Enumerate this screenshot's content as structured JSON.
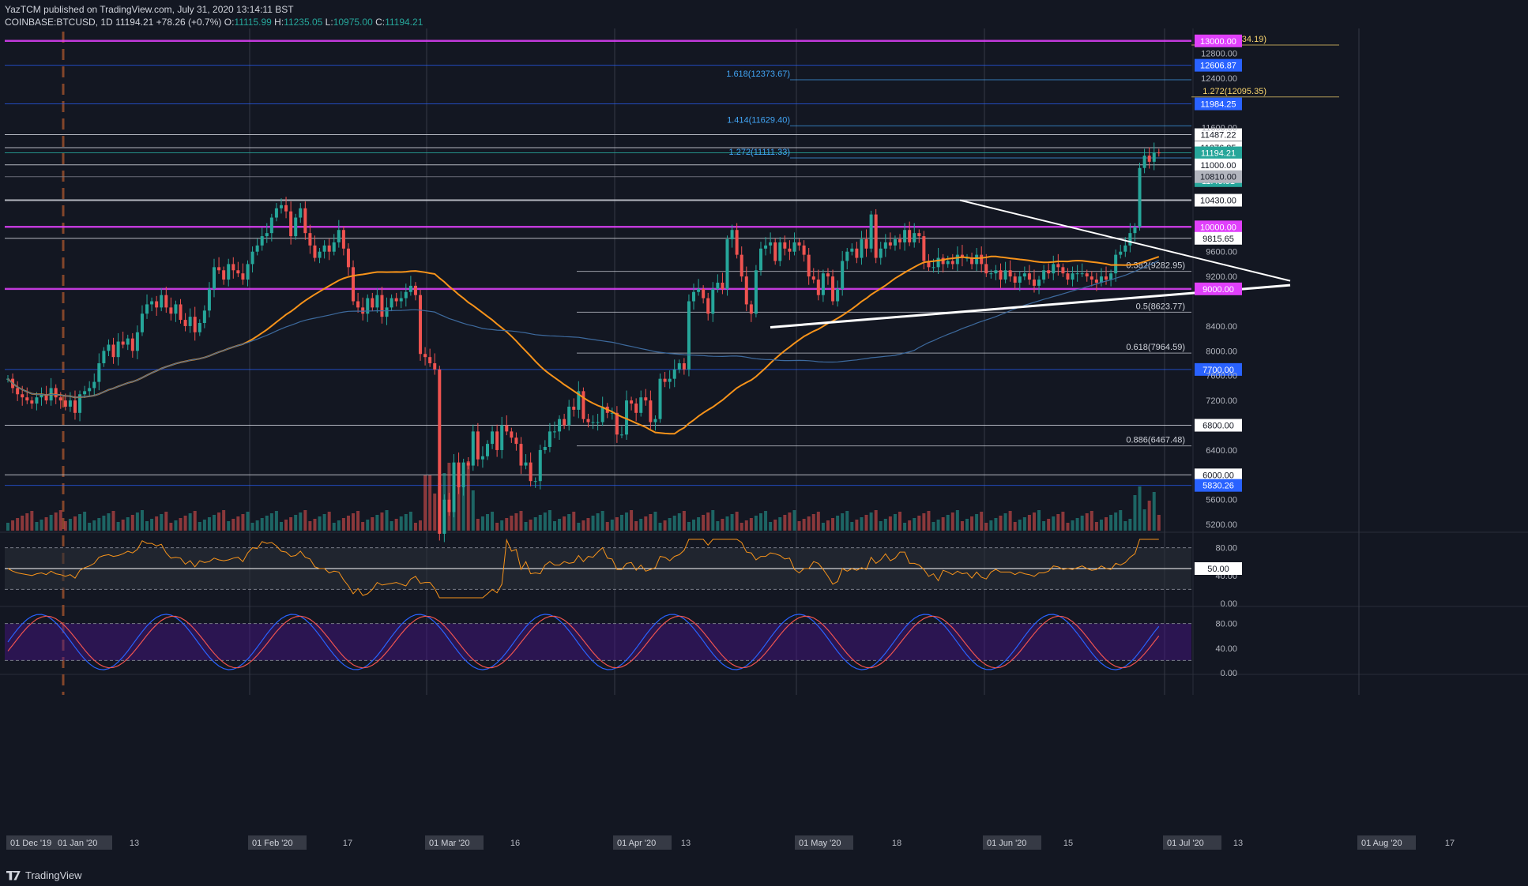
{
  "header": {
    "line1": "YazTCM published on TradingView.com, July 31, 2020 13:14:11 BST",
    "symbol": "COINBASE:BTCUSD, 1D",
    "last": "11194.21",
    "change": "+78.26 (+0.7%)",
    "o_label": "O:",
    "o": "11115.99",
    "h_label": "H:",
    "h": "11235.05",
    "l_label": "L:",
    "l": "10975.00",
    "c_label": "C:",
    "c": "11194.21"
  },
  "footer": {
    "brand": "TradingView"
  },
  "colors": {
    "bg": "#131722",
    "up": "#26a69a",
    "down": "#ef5350",
    "magenta": "#e040fb",
    "blue_level": "#2962ff",
    "ma_orange": "#f7931a",
    "ma_blue": "#3d6a9e",
    "rsi": "#f7931a",
    "stoch_k": "#2962ff",
    "stoch_d": "#ef5350"
  },
  "chart_data": {
    "type": "candlestick",
    "ylim": [
      5100,
      13150
    ],
    "price_ticks": [
      "12800.00",
      "12400.00",
      "11600.00",
      "9600.00",
      "9200.00",
      "8400.00",
      "8000.00",
      "7600.00",
      "7200.00",
      "6400.00",
      "5600.00",
      "5200.00"
    ],
    "x_ticks": [
      "01 Dec '19",
      "01 Jan '20",
      "13",
      "01 Feb '20",
      "17",
      "01 Mar '20",
      "16",
      "01 Apr '20",
      "13",
      "01 May '20",
      "18",
      "01 Jun '20",
      "15",
      "01 Jul '20",
      "13",
      "01 Aug '20",
      "17"
    ],
    "price_labels": [
      {
        "text": "13000.00",
        "value": 13000,
        "style": "magenta"
      },
      {
        "text": "12606.87",
        "value": 12606.87,
        "style": "blue"
      },
      {
        "text": "11984.25",
        "value": 11984.25,
        "style": "blue"
      },
      {
        "text": "11487.22",
        "value": 11487.22,
        "style": "white"
      },
      {
        "text": "11276.85",
        "value": 11276.85,
        "style": "white"
      },
      {
        "text": "11194.21",
        "value": 11194.21,
        "style": "green"
      },
      {
        "text": "11:45:51",
        "value": 11000,
        "style": "green",
        "offset": 20
      },
      {
        "text": "11000.00",
        "value": 11000,
        "style": "white"
      },
      {
        "text": "10810.00",
        "value": 10810,
        "style": "grey"
      },
      {
        "text": "10430.00",
        "value": 10430,
        "style": "white"
      },
      {
        "text": "10000.00",
        "value": 10000,
        "style": "magenta"
      },
      {
        "text": "9815.65",
        "value": 9815.65,
        "style": "white"
      },
      {
        "text": "9000.00",
        "value": 9000,
        "style": "magenta"
      },
      {
        "text": "7700.00",
        "value": 7700,
        "style": "blue"
      },
      {
        "text": "6800.00",
        "value": 6800,
        "style": "white"
      },
      {
        "text": "6000.00",
        "value": 6000,
        "style": "white"
      },
      {
        "text": "5830.26",
        "value": 5830.26,
        "style": "blue"
      }
    ],
    "fib_labels": [
      {
        "text": "1.618(12934.19)",
        "value": 12934.19,
        "color": "#f9d56e"
      },
      {
        "text": "1.618(12373.67)",
        "value": 12373.67,
        "color": "#42a5f5"
      },
      {
        "text": "1.272(12095.35)",
        "value": 12095.35,
        "color": "#f9d56e"
      },
      {
        "text": "1.414(11629.40)",
        "value": 11629.4,
        "color": "#42a5f5"
      },
      {
        "text": "1.272(11111.33)",
        "value": 11111.33,
        "color": "#42a5f5"
      },
      {
        "text": "0.382(9282.95)",
        "value": 9282.95,
        "color": "#d1d4dc"
      },
      {
        "text": "0.5(8623.77)",
        "value": 8623.77,
        "color": "#d1d4dc"
      },
      {
        "text": "0.618(7964.59)",
        "value": 7964.59,
        "color": "#d1d4dc"
      },
      {
        "text": "0.886(6467.48)",
        "value": 6467.48,
        "color": "#d1d4dc"
      }
    ],
    "closes": [
      7550,
      7400,
      7300,
      7250,
      7200,
      7150,
      7250,
      7300,
      7200,
      7400,
      7250,
      7200,
      7100,
      7200,
      7000,
      7300,
      7350,
      7400,
      7500,
      7800,
      8000,
      8100,
      7900,
      8150,
      8100,
      8200,
      8000,
      8300,
      8600,
      8750,
      8800,
      8700,
      8900,
      8700,
      8600,
      8750,
      8500,
      8400,
      8550,
      8300,
      8450,
      8650,
      9000,
      9350,
      9300,
      9150,
      9400,
      9300,
      9250,
      9150,
      9400,
      9600,
      9700,
      9850,
      9900,
      10150,
      10300,
      10350,
      10250,
      9850,
      10150,
      10300,
      9900,
      9700,
      9500,
      9600,
      9700,
      9600,
      9750,
      9950,
      9650,
      9350,
      8800,
      8700,
      8600,
      8850,
      8700,
      8900,
      8550,
      8700,
      8850,
      8800,
      8850,
      8950,
      9050,
      8900,
      7950,
      7900,
      7800,
      7700,
      5050,
      5600,
      5400,
      6200,
      5800,
      6200,
      6150,
      6700,
      6250,
      6300,
      6500,
      6700,
      6400,
      6800,
      6700,
      6600,
      6500,
      6150,
      6200,
      5900,
      5900,
      6400,
      6450,
      6700,
      6700,
      6900,
      6800,
      7100,
      7050,
      7350,
      6900,
      6850,
      6850,
      6850,
      7100,
      7000,
      7000,
      6650,
      6650,
      7200,
      7150,
      7000,
      7250,
      7200,
      6850,
      6900,
      7550,
      7500,
      7550,
      7700,
      7800,
      7700,
      8800,
      8950,
      9000,
      8850,
      8600,
      9000,
      9100,
      9000,
      9800,
      9950,
      9550,
      9200,
      8750,
      8600,
      9300,
      9650,
      9700,
      9750,
      9450,
      9750,
      9650,
      9600,
      9750,
      9700,
      9550,
      9200,
      9150,
      8900,
      9250,
      9200,
      8800,
      9000,
      9450,
      9600,
      9650,
      9500,
      9800,
      9650,
      10200,
      9500,
      9650,
      9750,
      9700,
      9800,
      9750,
      9950,
      9750,
      9900,
      9850,
      9450,
      9350,
      9350,
      9500,
      9400,
      9450,
      9400,
      9550,
      9500,
      9500,
      9400,
      9550,
      9400,
      9250,
      9250,
      9300,
      9150,
      9300,
      9200,
      9100,
      9200,
      9250,
      9150,
      9050,
      9150,
      9300,
      9250,
      9400,
      9350,
      9250,
      9150,
      9250,
      9250,
      9250,
      9200,
      9150,
      9100,
      9200,
      9150,
      9250,
      9550,
      9600,
      9700,
      9900,
      10000,
      10950,
      11150,
      11050,
      11200,
      11194
    ],
    "ma_orange_note": "50 MA",
    "rsi": {
      "levels": [
        "80.00",
        "50.00",
        "40.00",
        "0.00"
      ],
      "current": "50.00"
    },
    "stoch": {
      "levels": [
        "80.00",
        "40.00",
        "0.00"
      ]
    }
  }
}
